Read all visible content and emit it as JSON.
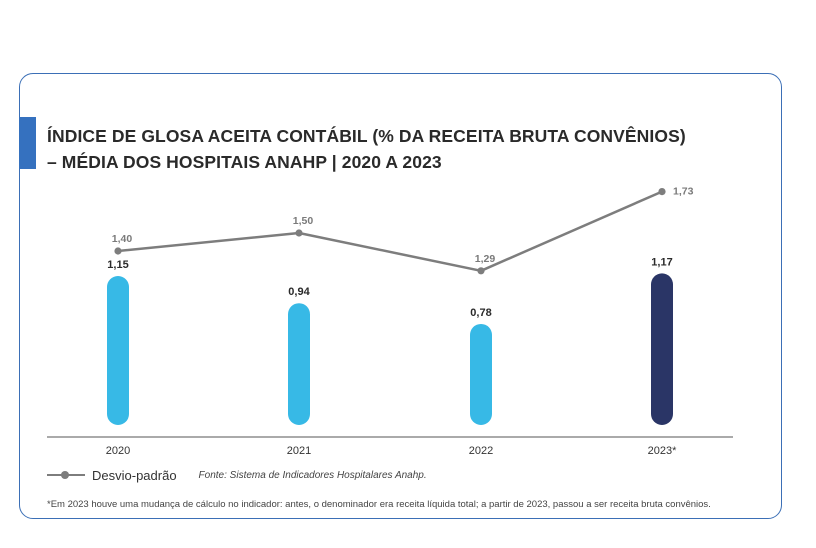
{
  "title_lines": [
    "ÍNDICE DE GLOSA ACEITA CONTÁBIL (% DA RECEITA BRUTA CONVÊNIOS)",
    "– MÉDIA DOS HOSPITAIS ANAHP  | 2020 A 2023"
  ],
  "legend": {
    "series_label": "Desvio-padrão",
    "source": "Fonte: Sistema de Indicadores Hospitalares Anahp."
  },
  "footnote": "*Em 2023 houve uma mudança de cálculo no indicador: antes, o denominador era receita líquida total; a partir de 2023, passou a ser receita bruta convênios.",
  "colors": {
    "bar": "#37b9e6",
    "bar_highlight": "#2a3566",
    "line": "#7d7d7d",
    "accent": "#3571bf",
    "border": "#3b6fb6"
  },
  "chart_data": {
    "type": "bar",
    "title": "ÍNDICE DE GLOSA ACEITA CONTÁBIL (% DA RECEITA BRUTA CONVÊNIOS) – MÉDIA DOS HOSPITAIS ANAHP | 2020 A 2023",
    "categories": [
      "2020",
      "2021",
      "2022",
      "2023*"
    ],
    "series": [
      {
        "values": [
          1.15,
          0.94,
          0.78,
          1.17
        ],
        "labels": [
          "1,15",
          "0,94",
          "0,78",
          "1,17"
        ],
        "type": "bar"
      },
      {
        "name": "Desvio-padrão",
        "values": [
          1.4,
          1.5,
          1.29,
          1.73
        ],
        "labels": [
          "1,40",
          "1,50",
          "1,29",
          "1,73"
        ],
        "type": "line"
      }
    ],
    "highlight_category": "2023*",
    "ylim": [
      0,
      1.9
    ],
    "grid": false,
    "legend_position": "bottom-left"
  }
}
